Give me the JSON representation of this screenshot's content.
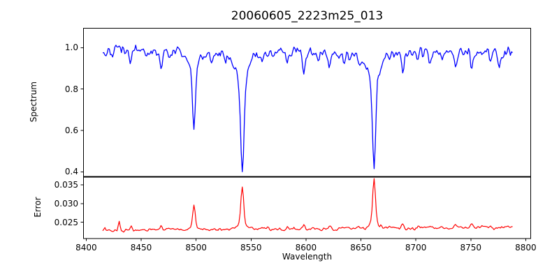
{
  "figure": {
    "title": "20060605_2223m25_013",
    "background": "#ffffff",
    "axis_color": "#000000",
    "text_color": "#000000"
  },
  "x_axis": {
    "label": "Wavelength",
    "xlim": [
      8397.5,
      8804.5
    ],
    "ticks": [
      {
        "v": 8400,
        "label": "8400"
      },
      {
        "v": 8450,
        "label": "8450"
      },
      {
        "v": 8500,
        "label": "8500"
      },
      {
        "v": 8550,
        "label": "8550"
      },
      {
        "v": 8600,
        "label": "8600"
      },
      {
        "v": 8650,
        "label": "8650"
      },
      {
        "v": 8700,
        "label": "8700"
      },
      {
        "v": 8750,
        "label": "8750"
      },
      {
        "v": 8800,
        "label": "8800"
      }
    ]
  },
  "chart_data": [
    {
      "type": "line",
      "name": "spectrum-panel",
      "title": "20060605_2223m25_013",
      "xlabel": "Wavelength",
      "ylabel": "Spectrum",
      "color": "#0000ff",
      "grid": false,
      "legend": null,
      "xlim": [
        8397.5,
        8804.5
      ],
      "ylim": [
        0.376,
        1.094
      ],
      "yticks": [
        {
          "v": 0.4,
          "label": "0.4"
        },
        {
          "v": 0.6,
          "label": "0.6"
        },
        {
          "v": 0.8,
          "label": "0.8"
        },
        {
          "v": 1.0,
          "label": "1.0"
        }
      ],
      "x_start": 8415,
      "x_end": 8788,
      "sample_step": 1,
      "continuum": 0.975,
      "noise_sigma": 0.013,
      "noise_seed": 42,
      "absorption_lines": [
        {
          "center": 8498,
          "depth": 0.3,
          "sigma": 1.2,
          "wing_depth": 0.082,
          "wing_sigma": 3.5,
          "min_flux": 0.59
        },
        {
          "center": 8542,
          "depth": 0.46,
          "sigma": 1.5,
          "wing_depth": 0.13,
          "wing_sigma": 5.5,
          "min_flux": 0.39
        },
        {
          "center": 8662,
          "depth": 0.425,
          "sigma": 1.4,
          "wing_depth": 0.12,
          "wing_sigma": 5.0,
          "min_flux": 0.43
        },
        {
          "center": 8440,
          "depth": 0.05,
          "sigma": 1.1
        },
        {
          "center": 8453,
          "depth": 0.03,
          "sigma": 1.0
        },
        {
          "center": 8468,
          "depth": 0.065,
          "sigma": 1.2
        },
        {
          "center": 8476,
          "depth": 0.03,
          "sigma": 1.0
        },
        {
          "center": 8514,
          "depth": 0.045,
          "sigma": 1.1
        },
        {
          "center": 8527,
          "depth": 0.035,
          "sigma": 1.0
        },
        {
          "center": 8560,
          "depth": 0.055,
          "sigma": 1.1
        },
        {
          "center": 8571,
          "depth": 0.03,
          "sigma": 1.0
        },
        {
          "center": 8583,
          "depth": 0.06,
          "sigma": 1.1
        },
        {
          "center": 8598,
          "depth": 0.075,
          "sigma": 1.2
        },
        {
          "center": 8611,
          "depth": 0.04,
          "sigma": 1.0
        },
        {
          "center": 8621,
          "depth": 0.065,
          "sigma": 1.1
        },
        {
          "center": 8634,
          "depth": 0.03,
          "sigma": 1.0
        },
        {
          "center": 8648,
          "depth": 0.04,
          "sigma": 1.0
        },
        {
          "center": 8676,
          "depth": 0.03,
          "sigma": 1.0
        },
        {
          "center": 8688,
          "depth": 0.085,
          "sigma": 1.2
        },
        {
          "center": 8702,
          "depth": 0.035,
          "sigma": 1.0
        },
        {
          "center": 8713,
          "depth": 0.05,
          "sigma": 1.1
        },
        {
          "center": 8724,
          "depth": 0.035,
          "sigma": 1.0
        },
        {
          "center": 8736,
          "depth": 0.06,
          "sigma": 1.1
        },
        {
          "center": 8751,
          "depth": 0.07,
          "sigma": 1.2
        },
        {
          "center": 8768,
          "depth": 0.045,
          "sigma": 1.0
        },
        {
          "center": 8776,
          "depth": 0.055,
          "sigma": 1.1
        }
      ]
    },
    {
      "type": "line",
      "name": "error-panel",
      "xlabel": "Wavelength",
      "ylabel": "Error",
      "color": "#ff0000",
      "grid": false,
      "legend": null,
      "xlim": [
        8397.5,
        8804.5
      ],
      "ylim": [
        0.0206,
        0.0372
      ],
      "yticks": [
        {
          "v": 0.025,
          "label": "0.025"
        },
        {
          "v": 0.03,
          "label": "0.030"
        },
        {
          "v": 0.035,
          "label": "0.035"
        }
      ],
      "x_start": 8415,
      "x_end": 8788,
      "sample_step": 1,
      "baseline_start": 0.0228,
      "baseline_end": 0.0236,
      "noise_sigma": 0.00022,
      "noise_seed": 13,
      "peaks": [
        {
          "center": 8498,
          "height": 0.0058,
          "sigma": 1.1,
          "wing_height": 0.0008,
          "wing_sigma": 3.0,
          "max_error": 0.0295
        },
        {
          "center": 8542,
          "height": 0.0103,
          "sigma": 1.3,
          "wing_height": 0.0012,
          "wing_sigma": 4.0,
          "max_error": 0.0345
        },
        {
          "center": 8662,
          "height": 0.0112,
          "sigma": 1.3,
          "wing_height": 0.0015,
          "wing_sigma": 4.0,
          "max_error": 0.035
        },
        {
          "center": 8430,
          "height": 0.0018,
          "sigma": 0.8
        },
        {
          "center": 8441,
          "height": 0.0007,
          "sigma": 0.8
        },
        {
          "center": 8468,
          "height": 0.0008,
          "sigma": 0.9
        },
        {
          "center": 8484,
          "height": 0.0005,
          "sigma": 0.8
        },
        {
          "center": 8521,
          "height": 0.0005,
          "sigma": 0.9
        },
        {
          "center": 8560,
          "height": 0.0006,
          "sigma": 0.9
        },
        {
          "center": 8583,
          "height": 0.0006,
          "sigma": 0.9
        },
        {
          "center": 8598,
          "height": 0.0008,
          "sigma": 1.0
        },
        {
          "center": 8621,
          "height": 0.0007,
          "sigma": 0.9
        },
        {
          "center": 8648,
          "height": 0.0005,
          "sigma": 0.9
        },
        {
          "center": 8676,
          "height": 0.0006,
          "sigma": 0.9
        },
        {
          "center": 8688,
          "height": 0.0009,
          "sigma": 1.0
        },
        {
          "center": 8702,
          "height": 0.0005,
          "sigma": 0.9
        },
        {
          "center": 8713,
          "height": 0.0007,
          "sigma": 0.9
        },
        {
          "center": 8724,
          "height": 0.0006,
          "sigma": 0.9
        },
        {
          "center": 8736,
          "height": 0.0009,
          "sigma": 1.0
        },
        {
          "center": 8751,
          "height": 0.0011,
          "sigma": 1.0
        },
        {
          "center": 8760,
          "height": 0.0007,
          "sigma": 0.9
        },
        {
          "center": 8768,
          "height": 0.0008,
          "sigma": 0.9
        }
      ]
    }
  ]
}
